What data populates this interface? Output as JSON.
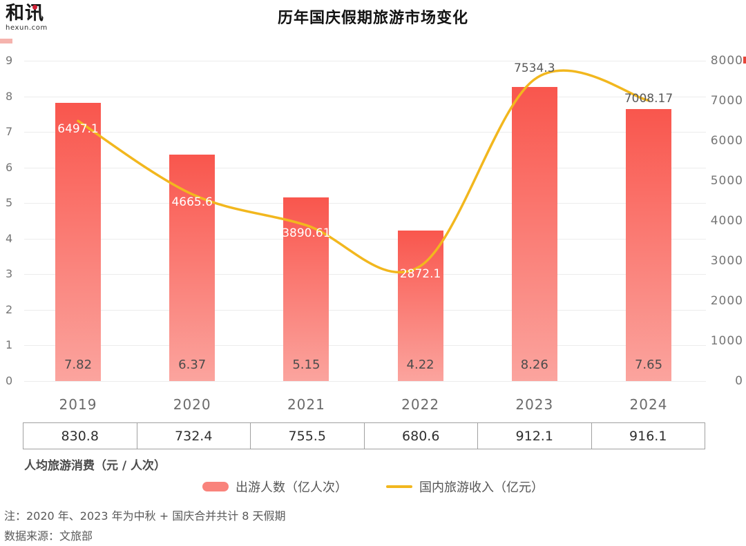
{
  "logo": {
    "name": "和讯",
    "domain": "hexun.com"
  },
  "title": "历年国庆假期旅游市场变化",
  "chart_data": {
    "type": "bar",
    "combo": "bar+line dual axis",
    "title": "历年国庆假期旅游市场变化",
    "categories": [
      "2019",
      "2020",
      "2021",
      "2022",
      "2023",
      "2024"
    ],
    "series": [
      {
        "name": "出游人数（亿人次）",
        "type": "bar",
        "axis": "left",
        "values": [
          7.82,
          6.37,
          5.15,
          4.22,
          8.26,
          7.65
        ]
      },
      {
        "name": "国内旅游收入（亿元）",
        "type": "line",
        "axis": "right",
        "values": [
          6497.1,
          4665.6,
          3890.61,
          2872.1,
          7534.3,
          7008.17
        ]
      }
    ],
    "left_axis": {
      "min": 0,
      "max": 9,
      "step": 1,
      "ticks": [
        0,
        1,
        2,
        3,
        4,
        5,
        6,
        7,
        8,
        9
      ]
    },
    "right_axis": {
      "min": 0,
      "max": 8000,
      "step": 1000,
      "ticks": [
        0,
        1000,
        2000,
        3000,
        4000,
        5000,
        6000,
        7000,
        8000
      ]
    },
    "grid": true,
    "legend_position": "bottom",
    "colors": {
      "bar_top": "#f9564d",
      "bar_bottom": "#fba49e",
      "line": "#f2b71e",
      "legend_bar_swatch": "#f9837c",
      "axis_text": "#757575",
      "label_on_bar": "#ffffff",
      "label_outside": "#595959"
    }
  },
  "table": {
    "caption": "人均旅游消费（元 / 人次）",
    "values": [
      "830.8",
      "732.4",
      "755.5",
      "680.6",
      "912.1",
      "916.1"
    ]
  },
  "legend": [
    {
      "label": "出游人数（亿人次）",
      "swatch": "bar"
    },
    {
      "label": "国内旅游收入（亿元）",
      "swatch": "line"
    }
  ],
  "notes": [
    "注：2020 年、2023 年为中秋 + 国庆合并共计 8 天假期",
    "数据来源：文旅部"
  ]
}
